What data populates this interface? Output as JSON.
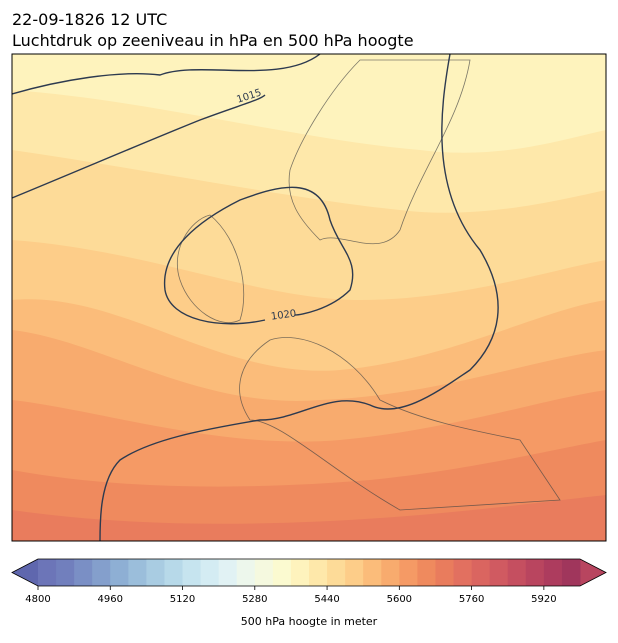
{
  "header": {
    "title": "22-09-1826 12 UTC",
    "subtitle": "Luchtdruk op zeeniveau in hPa en 500 hPa hoogte"
  },
  "map": {
    "contour_labels": [
      "1015",
      "1020"
    ]
  },
  "colorbar": {
    "label": "500 hPa hoogte in meter",
    "lim": [
      4800,
      6000
    ],
    "ticks": [
      4800,
      4960,
      5120,
      5280,
      5440,
      5600,
      5760,
      5920
    ],
    "colors": [
      "#6c75b8",
      "#717fbd",
      "#7a8fc5",
      "#849fcc",
      "#8eafd4",
      "#9bbedb",
      "#a9cce2",
      "#b7d9e9",
      "#c6e4ef",
      "#d4ecf3",
      "#e1f2f4",
      "#edf7ec",
      "#f5f9df",
      "#fbfad0",
      "#fef3bd",
      "#fee8aa",
      "#fddb98",
      "#fdcd89",
      "#fbbc7a",
      "#f8ab6e",
      "#f59a65",
      "#ef8a5e",
      "#e97c5d",
      "#e27060",
      "#da6560",
      "#d05a61",
      "#c54f60",
      "#b9455f",
      "#ad3c5e",
      "#a0365c"
    ],
    "under_color": "#5f67ae",
    "over_color": "#b8455f"
  }
}
